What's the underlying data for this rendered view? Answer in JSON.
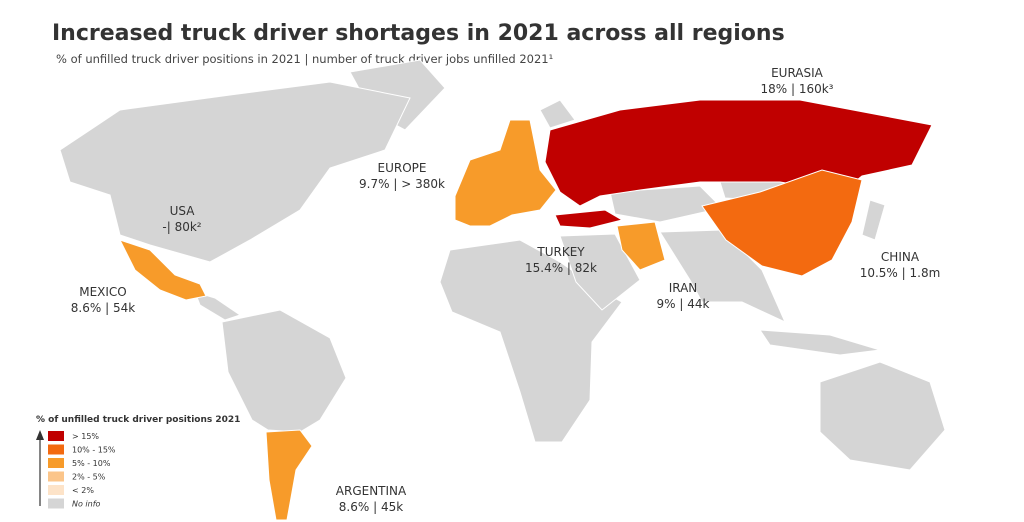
{
  "header": {
    "title": "Increased truck driver shortages in 2021 across all regions",
    "subtitle": "% of unfilled truck driver positions in 2021 | number of truck driver jobs unfilled 2021¹"
  },
  "regions": [
    {
      "name": "EURASIA",
      "stat": "18% | 160k³",
      "color": "#c00000"
    },
    {
      "name": "EUROPE",
      "stat": "9.7% | > 380k",
      "color": "#f79b2a"
    },
    {
      "name": "USA",
      "stat": "-| 80k²",
      "color": "#d5d5d5"
    },
    {
      "name": "MEXICO",
      "stat": "8.6% | 54k",
      "color": "#f79b2a"
    },
    {
      "name": "TURKEY",
      "stat": "15.4% | 82k",
      "color": "#c00000"
    },
    {
      "name": "IRAN",
      "stat": "9% | 44k",
      "color": "#f79b2a"
    },
    {
      "name": "CHINA",
      "stat": "10.5% | 1.8m",
      "color": "#f36a10"
    },
    {
      "name": "ARGENTINA",
      "stat": "8.6% | 45k",
      "color": "#f79b2a"
    }
  ],
  "legend": {
    "title": "% of unfilled truck driver positions 2021",
    "items": [
      {
        "label": "> 15%",
        "color": "#c00000"
      },
      {
        "label": "10% - 15%",
        "color": "#f36a10"
      },
      {
        "label": "5% - 10%",
        "color": "#f79b2a"
      },
      {
        "label": "2% - 5%",
        "color": "#fbc58a"
      },
      {
        "label": "< 2%",
        "color": "#fde3c8"
      },
      {
        "label": "No info",
        "color": "#d5d5d5"
      }
    ]
  }
}
